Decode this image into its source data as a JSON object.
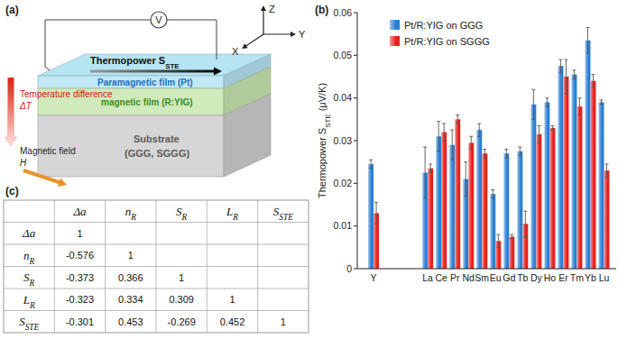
{
  "chart_data": {
    "type": "bar",
    "panel_label": "(b)",
    "y_label": {
      "main": "Thermopower S",
      "sub": "STE",
      "tail": " (μV/K)"
    },
    "categories": [
      "Y",
      null,
      null,
      null,
      "La",
      "Ce",
      "Pr",
      "Nd",
      "Sm",
      "Eu",
      "Gd",
      "Tb",
      "Dy",
      "Ho",
      "Er",
      "Tm",
      "Yb",
      "Lu"
    ],
    "series": [
      {
        "name": "Pt/R:YIG on GGG",
        "color": "#2a7fd4",
        "values": [
          0.0245,
          null,
          null,
          null,
          0.0225,
          0.031,
          0.029,
          0.021,
          0.0325,
          0.0175,
          0.027,
          0.0275,
          0.0385,
          0.039,
          0.0475,
          0.0455,
          0.0535,
          0.039
        ],
        "errors": [
          0.001,
          null,
          null,
          null,
          0.006,
          0.0035,
          0.0035,
          0.004,
          0.0015,
          0.001,
          0.001,
          0.001,
          0.0035,
          0.001,
          0.0015,
          0.001,
          0.003,
          0.0005
        ]
      },
      {
        "name": "Pt/R:YIG on SGGG",
        "color": "#e8211d",
        "values": [
          0.013,
          null,
          null,
          null,
          0.0235,
          0.032,
          0.035,
          0.0295,
          0.027,
          0.0065,
          0.0075,
          0.0105,
          0.0315,
          0.033,
          0.045,
          0.038,
          0.044,
          0.023
        ],
        "errors": [
          0.0025,
          null,
          null,
          null,
          0.001,
          0.002,
          0.001,
          0.0015,
          0.001,
          0.0015,
          0.0005,
          0.003,
          0.002,
          0.0005,
          0.004,
          0.002,
          0.0015,
          0.0015
        ]
      }
    ],
    "ylim": [
      0,
      0.06
    ],
    "yticks": [
      0,
      0.01,
      0.02,
      0.03,
      0.04,
      0.05,
      0.06
    ],
    "grid": false,
    "legend": "upper left"
  },
  "diagram": {
    "panel_label": "(a)",
    "axes": {
      "z": "Z",
      "y": "Y",
      "x": "X"
    },
    "meter": "V",
    "thermopower": {
      "main": "Thermopower S",
      "sub": "STE"
    },
    "layers": [
      {
        "name": "Paramagnetic film (Pt)",
        "color": "#b6e4f2"
      },
      {
        "name": "magnetic film (R:YIG)",
        "color": "#c9e6b0"
      },
      {
        "name": "Substrate",
        "note": "(GGG, SGGG)",
        "color": "#cfcfcf"
      }
    ],
    "temperature": {
      "label": "Temperature difference",
      "symbol": "ΔT"
    },
    "field": {
      "label": "Magnetic field",
      "symbol": "H"
    }
  },
  "table": {
    "panel_label": "(c)",
    "headers": [
      {
        "main": "Δa"
      },
      {
        "main": "n",
        "sub": "R"
      },
      {
        "main": "S",
        "sub": "R"
      },
      {
        "main": "L",
        "sub": "R"
      },
      {
        "main": "S",
        "sub": "STE"
      }
    ],
    "rows": [
      [
        1
      ],
      [
        -0.576,
        1
      ],
      [
        -0.373,
        0.366,
        1
      ],
      [
        -0.323,
        0.334,
        0.309,
        1
      ],
      [
        -0.301,
        0.453,
        -0.269,
        0.452,
        1
      ]
    ]
  }
}
